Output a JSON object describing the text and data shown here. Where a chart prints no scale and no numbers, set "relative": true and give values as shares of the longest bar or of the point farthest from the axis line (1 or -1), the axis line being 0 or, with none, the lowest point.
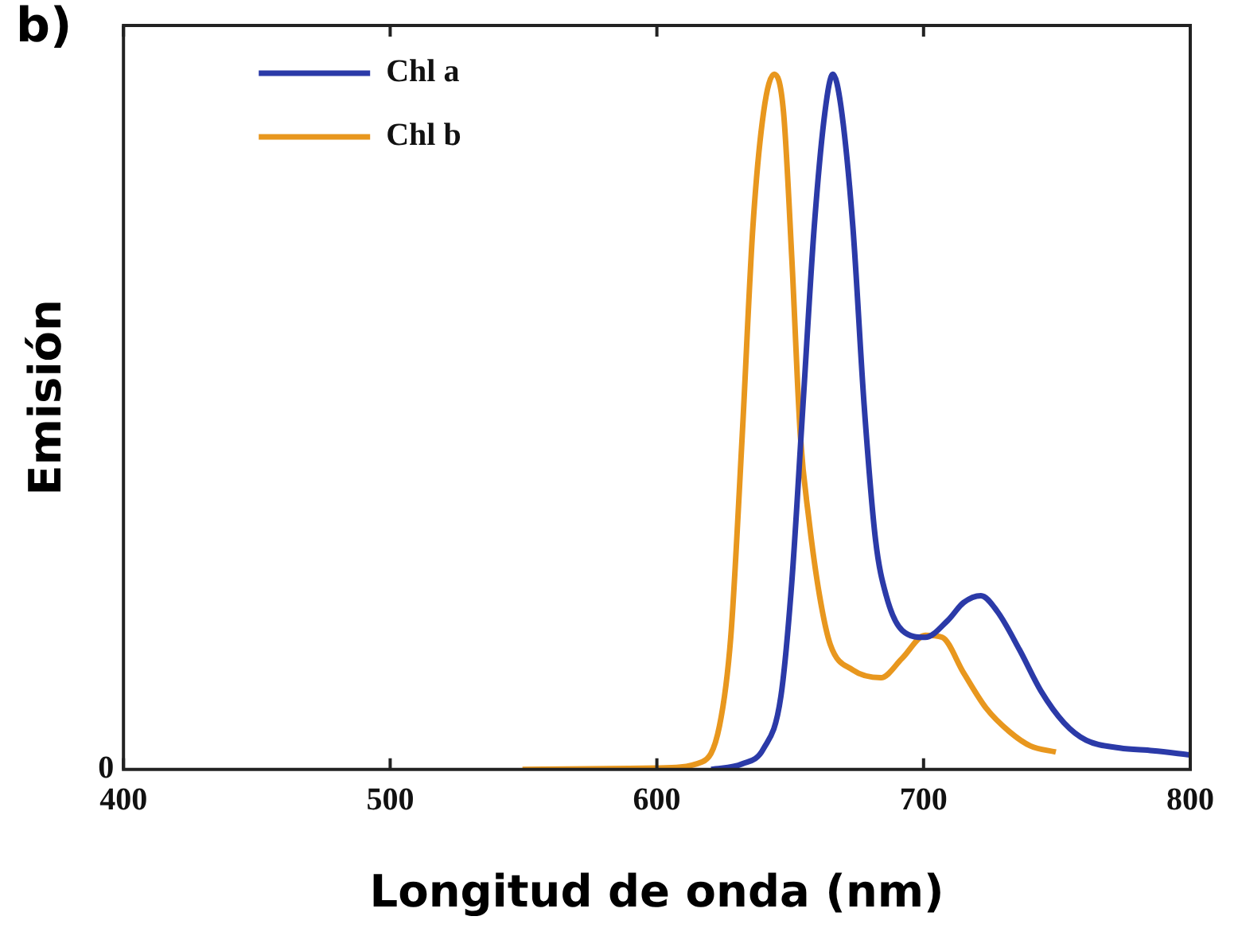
{
  "chart_data": {
    "type": "line",
    "title": "b)",
    "xlabel": "Longitud de onda (nm)",
    "ylabel": "Emisión",
    "relative": true,
    "xlim": [
      400,
      800
    ],
    "xticks": [
      400,
      500,
      600,
      700,
      800
    ],
    "grid": false,
    "legend": "top left",
    "marker": "none",
    "line_style": "solid",
    "annotations": [
      "0"
    ],
    "series": [
      {
        "name": "Chl a",
        "color": "#2b3aa8",
        "x": [
          620.4,
          632,
          640,
          646.5,
          650.6,
          654.8,
          659,
          663,
          666,
          669,
          673.5,
          677.7,
          682,
          686,
          692,
          700.6,
          709,
          715,
          721.5,
          727.7,
          736,
          744,
          752.7,
          761,
          773.5,
          786,
          800
        ],
        "values": [
          0,
          0.008,
          0.03,
          0.105,
          0.27,
          0.525,
          0.78,
          0.945,
          1,
          0.954,
          0.78,
          0.525,
          0.33,
          0.25,
          0.2,
          0.19,
          0.214,
          0.24,
          0.25,
          0.227,
          0.172,
          0.113,
          0.067,
          0.042,
          0.031,
          0.027,
          0.021
        ]
      },
      {
        "name": "Chl b",
        "color": "#e8971e",
        "x": [
          549.6,
          600,
          617,
          623.5,
          627.7,
          632,
          636,
          640,
          644,
          647.5,
          650.6,
          653.8,
          657,
          661,
          665,
          673.5,
          684,
          692,
          700.6,
          707,
          715,
          723.5,
          732,
          740,
          749.6
        ],
        "values": [
          0,
          0.002,
          0.011,
          0.063,
          0.19,
          0.48,
          0.78,
          0.945,
          1,
          0.945,
          0.735,
          0.48,
          0.36,
          0.25,
          0.18,
          0.143,
          0.132,
          0.16,
          0.193,
          0.19,
          0.139,
          0.088,
          0.055,
          0.034,
          0.025
        ]
      }
    ]
  }
}
